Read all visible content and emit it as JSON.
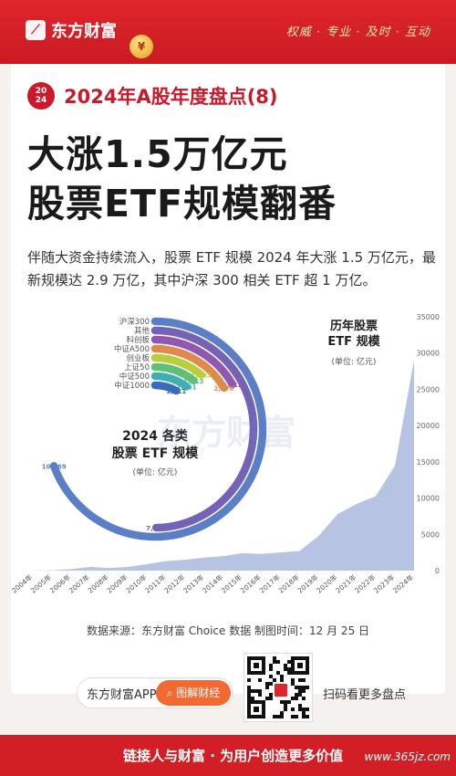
{
  "header": {
    "brand": "东方财富",
    "slogan": "权威 · 专业 · 及时 · 互动"
  },
  "badge": {
    "line1": "20",
    "line2": "24"
  },
  "kicker": "2024年A股年度盘点(8)",
  "headline": {
    "line1": "大涨1.5万亿元",
    "line2": "股票ETF规模翻番"
  },
  "intro": "伴随大资金持续流入，股票 ETF 规模 2024 年大涨 1.5 万亿元，最新规模达 2.9 万亿，其中沪深 300 相关 ETF 超 1 万亿。",
  "chart_data": [
    {
      "type": "radial-bar",
      "title": "2024 各类 股票 ETF 规模",
      "unit": "(单位: 亿元)",
      "categories": [
        "沪深300",
        "其他",
        "科创板",
        "中证A500",
        "创业板",
        "上证50",
        "中证500",
        "中证1000"
      ],
      "values": [
        10469,
        7510,
        2512,
        2476,
        1693,
        1613,
        1531,
        1211
      ],
      "value_labels": [
        "10,469",
        "7,510",
        "2,512",
        "2,476",
        "1,693",
        "1,613",
        "1,531",
        "1,211"
      ],
      "colors": [
        "#5b7fc7",
        "#7362b8",
        "#9257b0",
        "#e08a4a",
        "#b7cf3d",
        "#5fbf77",
        "#3eb0b3",
        "#3a6bb8"
      ]
    },
    {
      "type": "area",
      "title": "历年股票 ETF 规模",
      "unit": "(单位: 亿元)",
      "x": [
        "2004年",
        "2005年",
        "2006年",
        "2007年",
        "2008年",
        "2009年",
        "2010年",
        "2011年",
        "2012年",
        "2013年",
        "2014年",
        "2015年",
        "2016年",
        "2017年",
        "2018年",
        "2019年",
        "2020年",
        "2021年",
        "2022年",
        "2023年",
        "2024年"
      ],
      "y": [
        10,
        50,
        200,
        500,
        350,
        500,
        900,
        1300,
        1500,
        1800,
        2000,
        2400,
        2300,
        2500,
        2700,
        4800,
        7800,
        9200,
        10300,
        14500,
        29000
      ],
      "ylim": [
        0,
        35000
      ],
      "yticks": [
        "35000",
        "30000",
        "25000",
        "20000",
        "15000",
        "10000",
        "5000",
        "0"
      ],
      "color": "#a9b8de"
    }
  ],
  "watermark": "东方财富",
  "source": "数据来源：东方财富 Choice 数据    制图时间：12 月 25 日",
  "app": {
    "name": "东方财富APP",
    "button": "图解财经"
  },
  "scan": "扫码看更多盘点",
  "footer": "链接人与财富 · 为用户创造更多价值",
  "site": "www.365jz.com"
}
